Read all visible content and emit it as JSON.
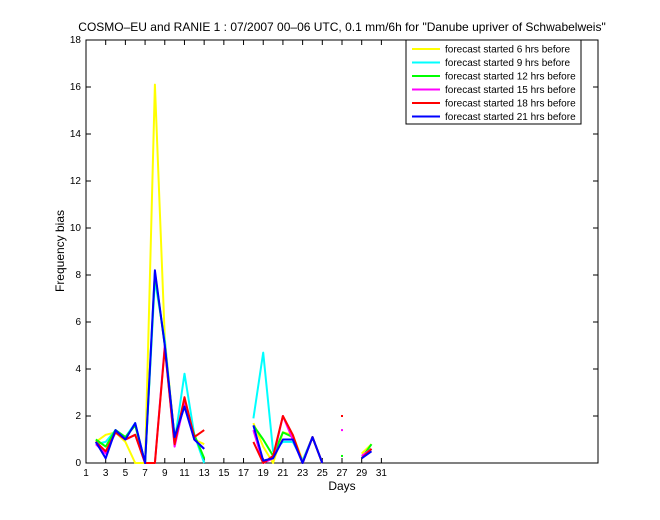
{
  "chart_data": {
    "type": "line",
    "title": "COSMO–EU and RANIE 1 : 07/2007 00–06 UTC, 0.1 mm/6h for \"Danube upriver of Schwabelweis\"",
    "xlabel": "Days",
    "ylabel": "Frequency bias",
    "xlim": [
      1,
      53
    ],
    "ylim": [
      0,
      18
    ],
    "xticks": [
      1,
      3,
      5,
      7,
      9,
      11,
      13,
      15,
      17,
      19,
      21,
      23,
      25,
      27,
      29,
      31
    ],
    "yticks": [
      0,
      2,
      4,
      6,
      8,
      10,
      12,
      14,
      16,
      18
    ],
    "grid": false,
    "legend_position": "top-right",
    "series": [
      {
        "name": "forecast started 6 hrs before",
        "color": "#ffff00",
        "x": [
          2,
          3,
          4,
          5,
          6,
          7,
          8,
          9,
          10,
          11,
          12,
          13,
          18,
          19,
          20,
          21,
          22,
          23,
          24,
          25,
          29,
          30
        ],
        "y": [
          0.9,
          1.2,
          1.3,
          0.9,
          0,
          0,
          16.1,
          5.3,
          1.0,
          2.5,
          1.0,
          0.8,
          1.7,
          0.7,
          0,
          1.3,
          1.2,
          0.1,
          1.1,
          0,
          0.4,
          0.8
        ]
      },
      {
        "name": "forecast started 9 hrs before",
        "color": "#00ffff",
        "x": [
          2,
          3,
          4,
          5,
          6,
          7,
          8,
          9,
          10,
          11,
          12,
          13,
          18,
          19,
          20,
          21,
          22,
          23,
          24,
          25,
          29,
          30
        ],
        "y": [
          0.8,
          0.9,
          1.4,
          1.1,
          1.7,
          0,
          7.8,
          5.2,
          0.9,
          3.8,
          1.2,
          0,
          1.9,
          4.7,
          0.5,
          0.9,
          0.9,
          0.1,
          1.1,
          0,
          0.2,
          0.6
        ]
      },
      {
        "name": "forecast started 12 hrs before",
        "color": "#00ff00",
        "x": [
          2,
          3,
          4,
          5,
          6,
          7,
          8,
          9,
          10,
          11,
          12,
          13,
          18,
          19,
          20,
          21,
          22,
          23,
          24,
          25,
          27,
          29,
          30
        ],
        "y": [
          1.0,
          0.7,
          1.4,
          1.1,
          1.6,
          0,
          8.1,
          5.0,
          1.1,
          2.5,
          1.2,
          0.2,
          1.6,
          1.0,
          0.3,
          1.3,
          1.1,
          0,
          1.1,
          0,
          0.3,
          0.2,
          0.8
        ]
      },
      {
        "name": "forecast started 15 hrs before",
        "color": "#ff00ff",
        "x": [
          2,
          3,
          4,
          5,
          6,
          7,
          8,
          9,
          10,
          11,
          12,
          13,
          18,
          19,
          20,
          21,
          22,
          23,
          24,
          25,
          27,
          29,
          30
        ],
        "y": [
          0.8,
          0.4,
          1.3,
          1.0,
          1.2,
          0,
          0,
          5.0,
          0.7,
          2.6,
          1.0,
          0.6,
          1.4,
          0,
          0.2,
          2.0,
          1.0,
          0,
          1.1,
          0,
          1.4,
          0.3,
          0.6
        ]
      },
      {
        "name": "forecast started 18 hrs before",
        "color": "#ff0000",
        "x": [
          2,
          3,
          4,
          5,
          6,
          7,
          8,
          9,
          10,
          11,
          12,
          13,
          18,
          19,
          20,
          21,
          22,
          23,
          24,
          25,
          27,
          29,
          30
        ],
        "y": [
          0.9,
          0.5,
          1.3,
          1.0,
          1.2,
          0,
          0,
          4.9,
          0.8,
          2.8,
          1.1,
          1.4,
          0.9,
          0,
          0.3,
          2.0,
          1.2,
          0,
          1.1,
          0,
          2.0,
          0.2,
          0.6
        ]
      },
      {
        "name": "forecast started 21 hrs before",
        "color": "#0000ff",
        "x": [
          2,
          3,
          4,
          5,
          6,
          7,
          8,
          9,
          10,
          11,
          12,
          13,
          18,
          19,
          20,
          21,
          22,
          23,
          24,
          25,
          29,
          30
        ],
        "y": [
          0.9,
          0.2,
          1.4,
          1.0,
          1.7,
          0,
          8.2,
          5.0,
          1.1,
          2.4,
          1.0,
          0.6,
          1.6,
          0.1,
          0.2,
          1.0,
          1.0,
          0,
          1.1,
          0,
          0.2,
          0.5
        ]
      }
    ]
  }
}
